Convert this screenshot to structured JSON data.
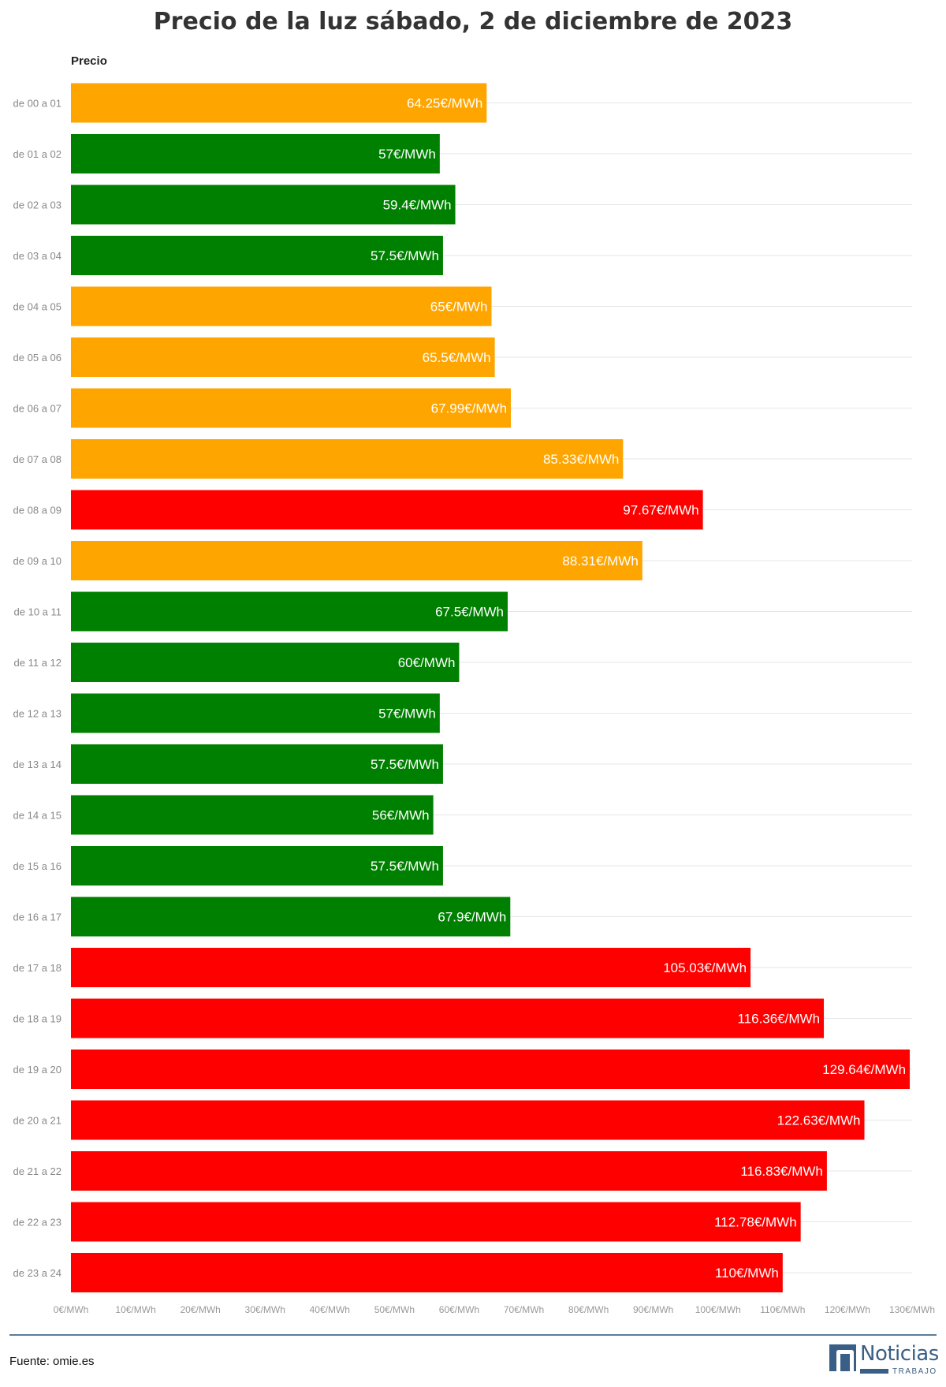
{
  "title": "Precio de la luz sábado, 2 de diciembre de 2023",
  "footer": {
    "source": "Fuente: omie.es"
  },
  "logo": {
    "name": "Noticias",
    "tagline": "TRABAJO"
  },
  "colors": {
    "low": "#008000",
    "medium": "#ffa500",
    "high": "#ff0000",
    "grid": "#e6e6e6",
    "tick": "#999999"
  },
  "chart_data": {
    "type": "bar",
    "orientation": "horizontal",
    "title": "Precio de la luz sábado, 2 de diciembre de 2023",
    "series_label": "Precio",
    "categories": [
      "de 00 a 01",
      "de 01 a 02",
      "de 02 a 03",
      "de 03 a 04",
      "de 04 a 05",
      "de 05 a 06",
      "de 06 a 07",
      "de 07 a 08",
      "de 08 a 09",
      "de 09 a 10",
      "de 10 a 11",
      "de 11 a 12",
      "de 12 a 13",
      "de 13 a 14",
      "de 14 a 15",
      "de 15 a 16",
      "de 16 a 17",
      "de 17 a 18",
      "de 18 a 19",
      "de 19 a 20",
      "de 20 a 21",
      "de 21 a 22",
      "de 22 a 23",
      "de 23 a 24"
    ],
    "values": [
      64.25,
      57,
      59.4,
      57.5,
      65,
      65.5,
      67.99,
      85.33,
      97.67,
      88.31,
      67.5,
      60,
      57,
      57.5,
      56,
      57.5,
      67.9,
      105.03,
      116.36,
      129.64,
      122.63,
      116.83,
      112.78,
      110
    ],
    "labels": [
      "64.25€/MWh",
      "57€/MWh",
      "59.4€/MWh",
      "57.5€/MWh",
      "65€/MWh",
      "65.5€/MWh",
      "67.99€/MWh",
      "85.33€/MWh",
      "97.67€/MWh",
      "88.31€/MWh",
      "67.5€/MWh",
      "60€/MWh",
      "57€/MWh",
      "57.5€/MWh",
      "56€/MWh",
      "57.5€/MWh",
      "67.9€/MWh",
      "105.03€/MWh",
      "116.36€/MWh",
      "129.64€/MWh",
      "122.63€/MWh",
      "116.83€/MWh",
      "112.78€/MWh",
      "110€/MWh"
    ],
    "levels": [
      "medium",
      "low",
      "low",
      "low",
      "medium",
      "medium",
      "medium",
      "medium",
      "high",
      "medium",
      "low",
      "low",
      "low",
      "low",
      "low",
      "low",
      "low",
      "high",
      "high",
      "high",
      "high",
      "high",
      "high",
      "high"
    ],
    "x_ticks": [
      "0€/MWh",
      "10€/MWh",
      "20€/MWh",
      "30€/MWh",
      "40€/MWh",
      "50€/MWh",
      "60€/MWh",
      "70€/MWh",
      "80€/MWh",
      "90€/MWh",
      "100€/MWh",
      "110€/MWh",
      "120€/MWh",
      "130€/MWh"
    ],
    "xlim": [
      0,
      130
    ],
    "grid": true
  }
}
